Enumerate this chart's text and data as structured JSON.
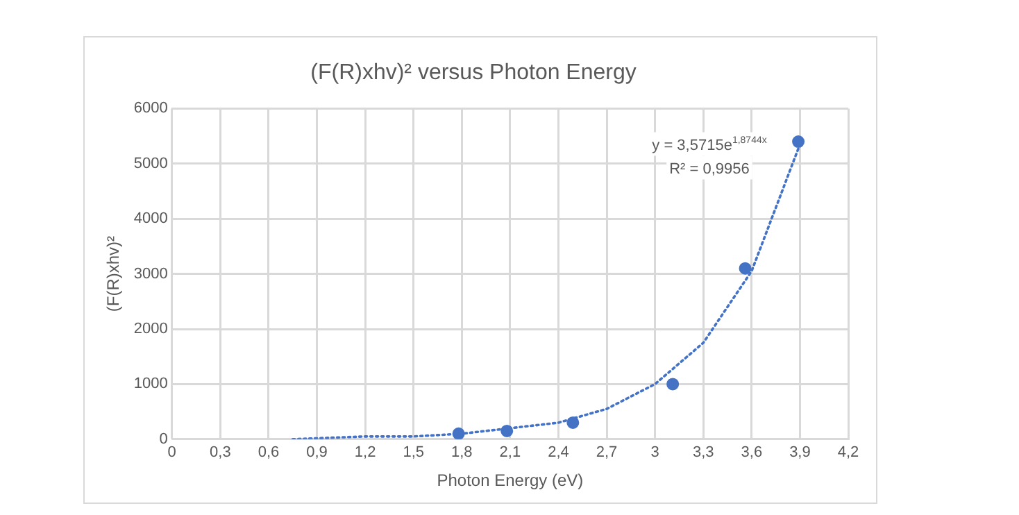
{
  "chart_data": {
    "type": "scatter",
    "title": "(F(R)xhv)² versus Photon Energy",
    "xlabel": "Photon Energy (eV)",
    "ylabel": "(F(R)xhv)²",
    "series": [
      {
        "type": "scatter",
        "color": "#4472c4",
        "x": [
          1.78,
          2.08,
          2.49,
          3.11,
          3.56,
          3.89
        ],
        "values": [
          100,
          150,
          300,
          1000,
          3100,
          5400
        ],
        "marker": "circle"
      },
      {
        "type": "line",
        "color": "#4472c4",
        "line_style": "dotted",
        "marker": "none",
        "x": [
          0.75,
          1.2,
          1.5,
          1.8,
          2.1,
          2.4,
          2.7,
          3.0,
          3.3,
          3.6,
          3.9
        ],
        "values": [
          0,
          50,
          50,
          100,
          200,
          300,
          550,
          1000,
          1750,
          3050,
          5350
        ]
      }
    ],
    "annotations": [
      "y = 3,5715e$^{1,8744x}$",
      "R² = 0,9956"
    ],
    "xlim": [
      0,
      4.2
    ],
    "ylim": [
      0,
      6000
    ],
    "xticks": [
      0,
      {
        "value": 0.3,
        "label": "0,3"
      },
      {
        "value": 0.6,
        "label": "0,6"
      },
      {
        "value": 0.9,
        "label": "0,9"
      },
      {
        "value": 1.2,
        "label": "1,2"
      },
      {
        "value": 1.5,
        "label": "1,5"
      },
      {
        "value": 1.8,
        "label": "1,8"
      },
      {
        "value": 2.1,
        "label": "2,1"
      },
      {
        "value": 2.4,
        "label": "2,4"
      },
      {
        "value": 2.7,
        "label": "2,7"
      },
      3,
      {
        "value": 3.3,
        "label": "3,3"
      },
      {
        "value": 3.6,
        "label": "3,6"
      },
      {
        "value": 3.9,
        "label": "3,9"
      },
      {
        "value": 4.2,
        "label": "4,2"
      }
    ],
    "yticks": [
      0,
      1000,
      2000,
      3000,
      4000,
      5000,
      6000
    ],
    "grid": true,
    "legend": false
  }
}
